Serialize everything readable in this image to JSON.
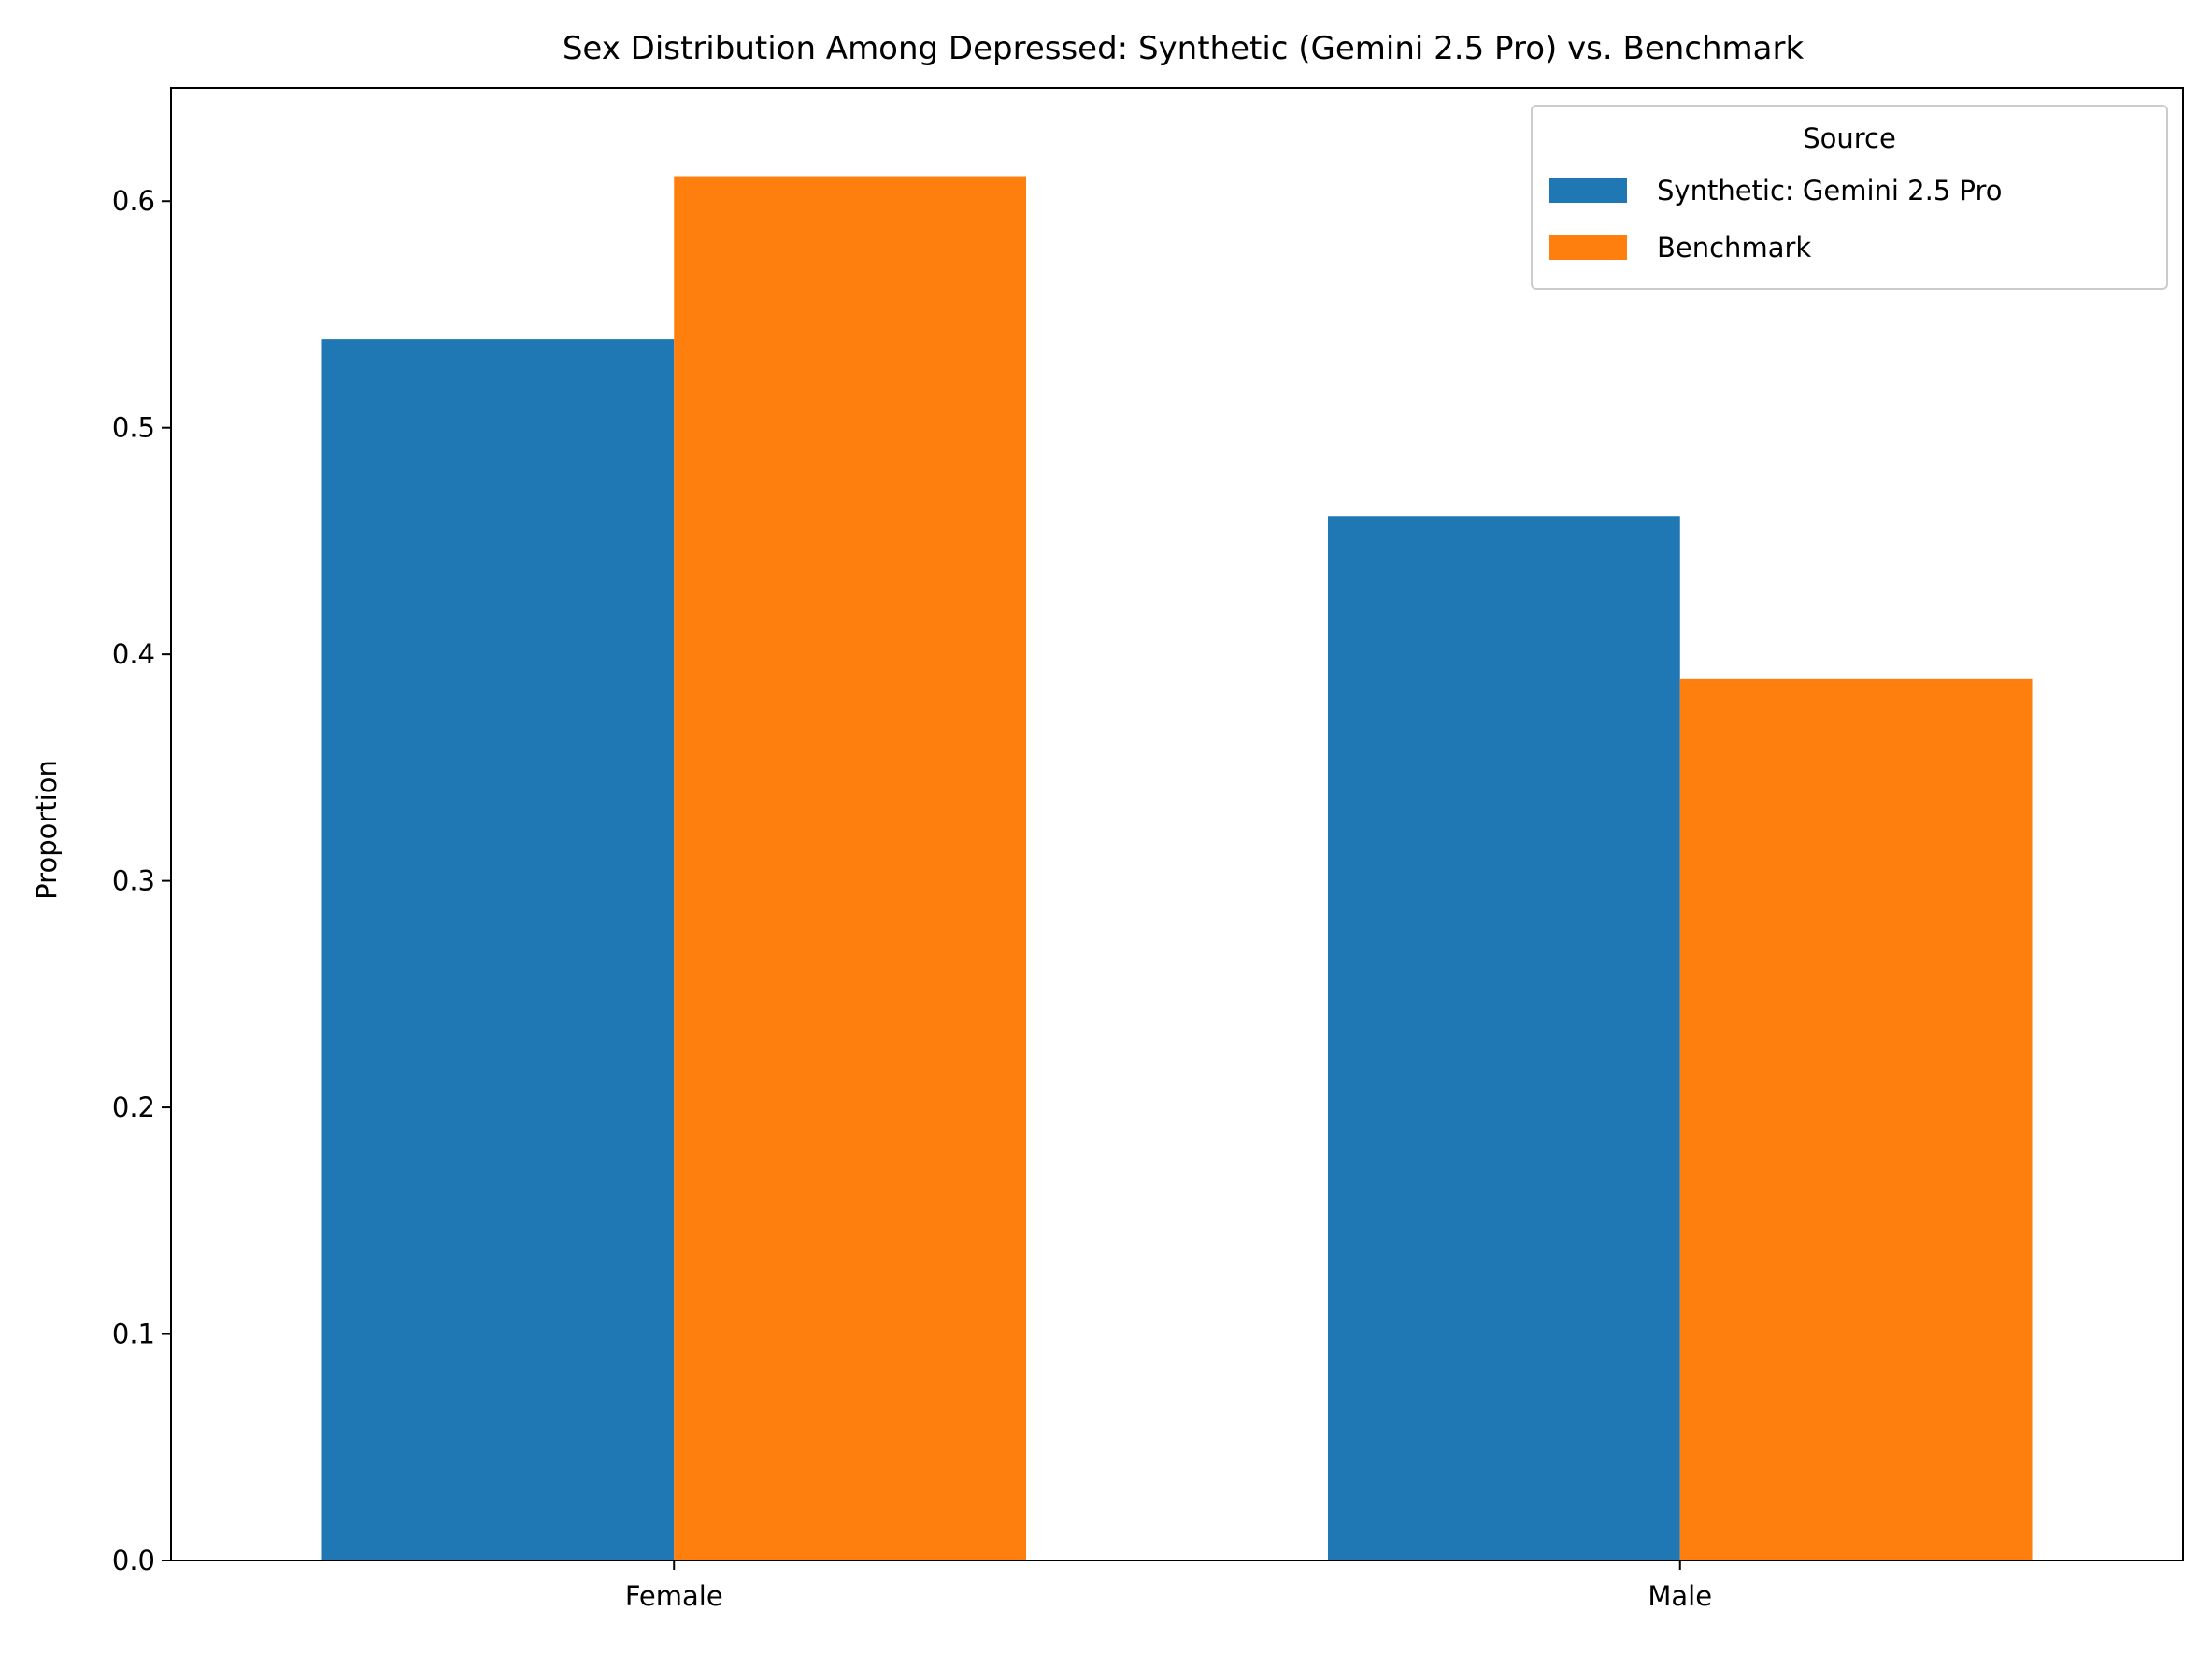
{
  "chart_data": {
    "type": "bar",
    "title": "Sex Distribution Among Depressed: Synthetic (Gemini 2.5 Pro) vs. Benchmark",
    "xlabel": "",
    "ylabel": "Proportion",
    "categories": [
      "Female",
      "Male"
    ],
    "series": [
      {
        "name": "Synthetic: Gemini 2.5 Pro",
        "values": [
          0.539,
          0.461
        ],
        "color": "#1f77b4"
      },
      {
        "name": "Benchmark",
        "values": [
          0.611,
          0.389
        ],
        "color": "#ff7f0e"
      }
    ],
    "ylim": [
      0,
      0.65
    ],
    "yticks": [
      "0.0",
      "0.1",
      "0.2",
      "0.3",
      "0.4",
      "0.5",
      "0.6"
    ],
    "grid": false,
    "legend": {
      "title": "Source",
      "placement": "top-right"
    }
  }
}
